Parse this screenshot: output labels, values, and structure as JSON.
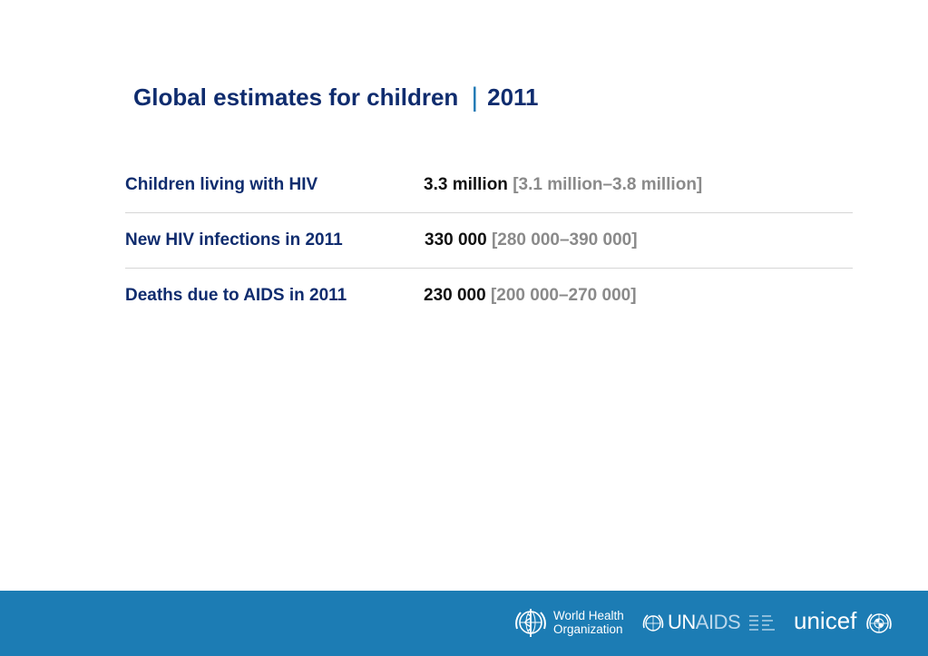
{
  "title": {
    "main": "Global estimates for children",
    "separator": "|",
    "year": "2011"
  },
  "rows": [
    {
      "label": "Children living with HIV",
      "value": "3.3 million",
      "range": "[3.1 million–3.8 million]"
    },
    {
      "label": "New HIV infections in 2011",
      "value": "330 000",
      "range": "[280 000–390 000]"
    },
    {
      "label": "Deaths due to AIDS in 2011",
      "value": "230 000",
      "range": "[200 000–270 000]"
    }
  ],
  "footer": {
    "color": "#1c7cb4",
    "logos": {
      "who_line1": "World Health",
      "who_line2": "Organization",
      "unaids_un": "UN",
      "unaids_aids": "AIDS",
      "unicef": "unicef"
    },
    "icons": [
      "who-emblem-icon",
      "un-emblem-icon",
      "unicef-emblem-icon"
    ]
  }
}
